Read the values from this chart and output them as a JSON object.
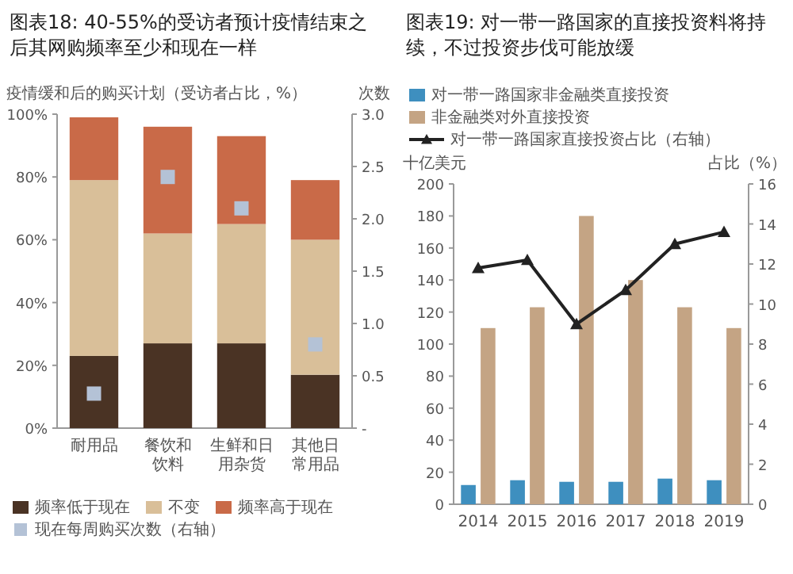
{
  "chart_data": [
    {
      "type": "bar",
      "title": "图表18: 40-55%的受访者预计疫情结束之后其网购频率至少和现在一样",
      "ylabel": "疫情缓和后的购买计划（受访者占比，%）",
      "y2label": "次数",
      "stacked": true,
      "legend": "bottom",
      "categories": [
        "耐用品",
        "餐饮和饮料",
        "生鲜和日用杂货",
        "其他日常用品"
      ],
      "ylim": [
        0,
        100
      ],
      "yticks": [
        {
          "value": 0,
          "label": "0%"
        },
        {
          "value": 20,
          "label": "20%"
        },
        {
          "value": 40,
          "label": "40%"
        },
        {
          "value": 60,
          "label": "60%"
        },
        {
          "value": 80,
          "label": "80%"
        },
        {
          "value": 100,
          "label": "100%"
        }
      ],
      "y2lim": [
        0,
        3
      ],
      "y2ticks": [
        {
          "value": 0,
          "label": "-"
        },
        0.5,
        {
          "value": 1,
          "label": "1.0"
        },
        1.5,
        {
          "value": 2,
          "label": "2.0"
        },
        2.5,
        {
          "value": 3,
          "label": "3.0"
        }
      ],
      "series": [
        {
          "name": "频率低于现在",
          "color": "#4a3324",
          "values": [
            23,
            27,
            27,
            17
          ]
        },
        {
          "name": "不变",
          "color": "#d9bf99",
          "values": [
            56,
            35,
            38,
            43
          ]
        },
        {
          "name": "频率高于现在",
          "color": "#c96a48",
          "values": [
            20,
            34,
            28,
            19
          ]
        },
        {
          "name": "现在每周购买次数（右轴）",
          "type": "scatter",
          "marker": "square",
          "axis": "y2",
          "color": "#b4c2d6",
          "values": [
            0.33,
            2.4,
            2.1,
            0.8
          ]
        }
      ]
    },
    {
      "type": "bar",
      "title": "图表19: 对一带一路国家的直接投资料将持续，不过投资步伐可能放缓",
      "ylabel": "十亿美元",
      "y2label": "占比（%）",
      "legend": "top",
      "categories": [
        "2014",
        "2015",
        "2016",
        "2017",
        "2018",
        "2019"
      ],
      "ylim": [
        0,
        200
      ],
      "yticks": [
        0,
        20,
        40,
        60,
        80,
        100,
        120,
        140,
        160,
        180,
        200
      ],
      "y2lim": [
        0,
        16
      ],
      "y2ticks": [
        0,
        2,
        4,
        6,
        8,
        10,
        12,
        14,
        16
      ],
      "series": [
        {
          "name": "对一带一路国家非金融类直接投资",
          "color": "#3e8fbf",
          "values": [
            12,
            15,
            14,
            14,
            16,
            15
          ]
        },
        {
          "name": "非金融类对外直接投资",
          "color": "#c4a484",
          "values": [
            110,
            123,
            180,
            140,
            123,
            110
          ]
        },
        {
          "name": "对一带一路国家直接投资占比（右轴）",
          "type": "line",
          "marker": "triangle",
          "axis": "y2",
          "color": "#222222",
          "values": [
            11.8,
            12.2,
            9,
            10.7,
            13,
            13.6
          ]
        }
      ]
    }
  ]
}
